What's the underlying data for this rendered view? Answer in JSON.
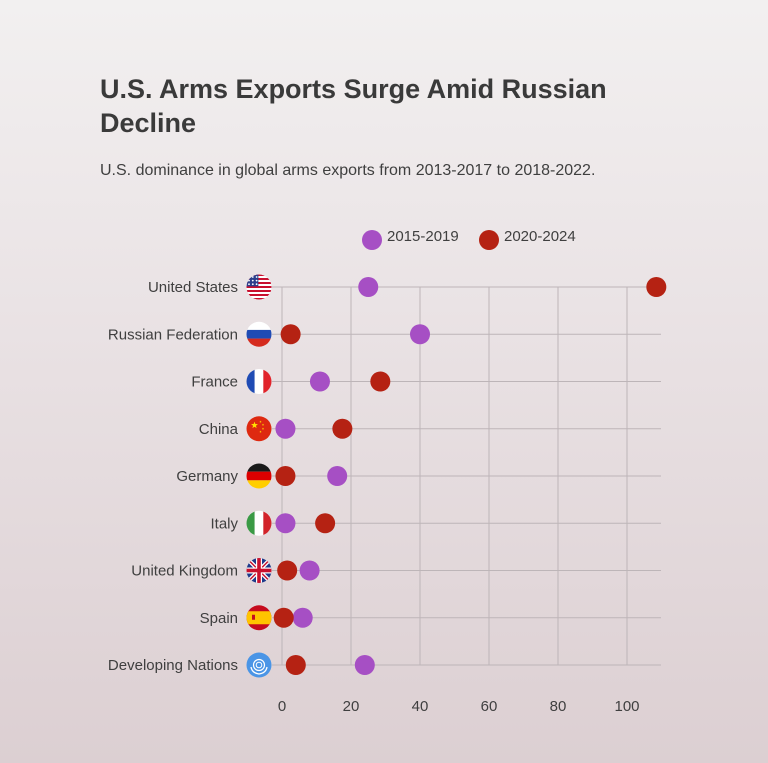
{
  "title": "U.S. Arms Exports Surge Amid Russian Decline",
  "subtitle": "U.S. dominance in global arms exports from 2013-2017 to 2018-2022.",
  "colors": {
    "series_2015_2019": "#a64fc4",
    "series_2020_2024": "#b52213",
    "grid": "#bdb5b8"
  },
  "chart_data": {
    "type": "scatter",
    "title": "U.S. Arms Exports Surge Amid Russian Decline",
    "subtitle": "U.S. dominance in global arms exports from 2013-2017 to 2018-2022.",
    "xlabel": "",
    "ylabel": "",
    "xlim": [
      -5,
      110
    ],
    "xticks": [
      0,
      20,
      40,
      60,
      80,
      100
    ],
    "grid": true,
    "legend_position": "top-center",
    "categories": [
      "United States",
      "Russian Federation",
      "France",
      "China",
      "Germany",
      "Italy",
      "United Kingdom",
      "Spain",
      "Developing Nations"
    ],
    "category_icons": [
      "us-flag-icon",
      "russia-flag-icon",
      "france-flag-icon",
      "china-flag-icon",
      "germany-flag-icon",
      "italy-flag-icon",
      "uk-flag-icon",
      "spain-flag-icon",
      "un-emblem-icon"
    ],
    "series": [
      {
        "name": "2015-2019",
        "color": "#a64fc4",
        "values": [
          25,
          40,
          11,
          1,
          16,
          1,
          8,
          6,
          24
        ]
      },
      {
        "name": "2020-2024",
        "color": "#b52213",
        "values": [
          108.5,
          2.5,
          28.5,
          17.5,
          1,
          12.5,
          1.5,
          0.5,
          4
        ]
      }
    ]
  }
}
